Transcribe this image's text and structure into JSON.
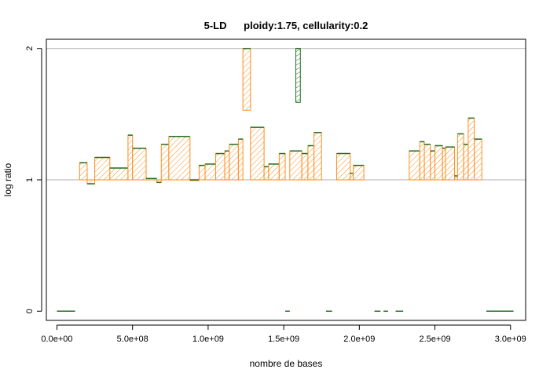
{
  "chart_data": {
    "type": "bar",
    "title": "5-LD      ploidy:1.75, cellularity:0.2",
    "xlabel": "nombre de bases",
    "ylabel": "log ratio",
    "xlim": [
      -70000000,
      3100000000
    ],
    "ylim": [
      -0.07,
      2.07
    ],
    "x_ticks": [
      0,
      500000000,
      1000000000,
      1500000000,
      2000000000,
      2500000000,
      3000000000
    ],
    "x_tick_labels": [
      "0.0e+00",
      "5.0e+08",
      "1.0e+09",
      "1.5e+09",
      "2.0e+09",
      "2.5e+09",
      "3.0e+09"
    ],
    "y_ticks": [
      0,
      1,
      2
    ],
    "y_tick_labels": [
      "0",
      "1",
      "2"
    ],
    "gridlines_y": [
      1,
      2
    ],
    "colors": {
      "fill": "#ff8c1a",
      "edge": "#1f6f1f",
      "grid": "#b0b0b0",
      "frame": "#000000"
    },
    "series": [
      {
        "color": "#ff8c1a",
        "segments": [
          {
            "x0": 0,
            "x1": 120000000,
            "y": 0.0
          },
          {
            "x0": 150000000,
            "x1": 200000000,
            "y": 1.13
          },
          {
            "x0": 200000000,
            "x1": 250000000,
            "y": 0.97
          },
          {
            "x0": 250000000,
            "x1": 350000000,
            "y": 1.17
          },
          {
            "x0": 350000000,
            "x1": 470000000,
            "y": 1.09
          },
          {
            "x0": 470000000,
            "x1": 500000000,
            "y": 1.34
          },
          {
            "x0": 500000000,
            "x1": 590000000,
            "y": 1.24
          },
          {
            "x0": 590000000,
            "x1": 660000000,
            "y": 1.01
          },
          {
            "x0": 660000000,
            "x1": 690000000,
            "y": 0.98
          },
          {
            "x0": 690000000,
            "x1": 740000000,
            "y": 1.27
          },
          {
            "x0": 740000000,
            "x1": 880000000,
            "y": 1.33
          },
          {
            "x0": 880000000,
            "x1": 940000000,
            "y": 1.0
          },
          {
            "x0": 940000000,
            "x1": 980000000,
            "y": 1.11
          },
          {
            "x0": 980000000,
            "x1": 1050000000,
            "y": 1.12
          },
          {
            "x0": 1050000000,
            "x1": 1110000000,
            "y": 1.2
          },
          {
            "x0": 1110000000,
            "x1": 1140000000,
            "y": 1.22
          },
          {
            "x0": 1140000000,
            "x1": 1200000000,
            "y": 1.27
          },
          {
            "x0": 1200000000,
            "x1": 1230000000,
            "y": 1.31
          },
          {
            "x0": 1230000000,
            "x1": 1280000000,
            "y": 2.0,
            "y_base": 1.53
          },
          {
            "x0": 1280000000,
            "x1": 1370000000,
            "y": 1.4
          },
          {
            "x0": 1370000000,
            "x1": 1400000000,
            "y": 1.1
          },
          {
            "x0": 1400000000,
            "x1": 1470000000,
            "y": 1.12
          },
          {
            "x0": 1470000000,
            "x1": 1510000000,
            "y": 1.2
          },
          {
            "x0": 1510000000,
            "x1": 1540000000,
            "y": 0.0
          },
          {
            "x0": 1540000000,
            "x1": 1620000000,
            "y": 1.22
          },
          {
            "x0": 1620000000,
            "x1": 1660000000,
            "y": 1.2
          },
          {
            "x0": 1660000000,
            "x1": 1700000000,
            "y": 1.26
          },
          {
            "x0": 1700000000,
            "x1": 1750000000,
            "y": 1.36
          },
          {
            "x0": 1780000000,
            "x1": 1820000000,
            "y": 0.0
          },
          {
            "x0": 1850000000,
            "x1": 1940000000,
            "y": 1.2
          },
          {
            "x0": 1940000000,
            "x1": 1960000000,
            "y": 1.05
          },
          {
            "x0": 1960000000,
            "x1": 2030000000,
            "y": 1.11
          },
          {
            "x0": 2100000000,
            "x1": 2140000000,
            "y": 0.0
          },
          {
            "x0": 2160000000,
            "x1": 2190000000,
            "y": 0.0
          },
          {
            "x0": 2240000000,
            "x1": 2290000000,
            "y": 0.0
          },
          {
            "x0": 2330000000,
            "x1": 2400000000,
            "y": 1.22
          },
          {
            "x0": 2400000000,
            "x1": 2430000000,
            "y": 1.29
          },
          {
            "x0": 2430000000,
            "x1": 2470000000,
            "y": 1.27
          },
          {
            "x0": 2470000000,
            "x1": 2500000000,
            "y": 1.22
          },
          {
            "x0": 2500000000,
            "x1": 2550000000,
            "y": 1.26
          },
          {
            "x0": 2550000000,
            "x1": 2570000000,
            "y": 1.24
          },
          {
            "x0": 2570000000,
            "x1": 2630000000,
            "y": 1.25
          },
          {
            "x0": 2630000000,
            "x1": 2650000000,
            "y": 1.03
          },
          {
            "x0": 2650000000,
            "x1": 2690000000,
            "y": 1.35
          },
          {
            "x0": 2690000000,
            "x1": 2720000000,
            "y": 1.27
          },
          {
            "x0": 2720000000,
            "x1": 2760000000,
            "y": 1.47
          },
          {
            "x0": 2760000000,
            "x1": 2810000000,
            "y": 1.31
          },
          {
            "x0": 2840000000,
            "x1": 3020000000,
            "y": 0.0
          }
        ]
      },
      {
        "color": "#1f6f1f",
        "segments": [
          {
            "x0": 1580000000,
            "x1": 1610000000,
            "y": 2.0,
            "y_base": 1.59
          }
        ]
      }
    ]
  }
}
